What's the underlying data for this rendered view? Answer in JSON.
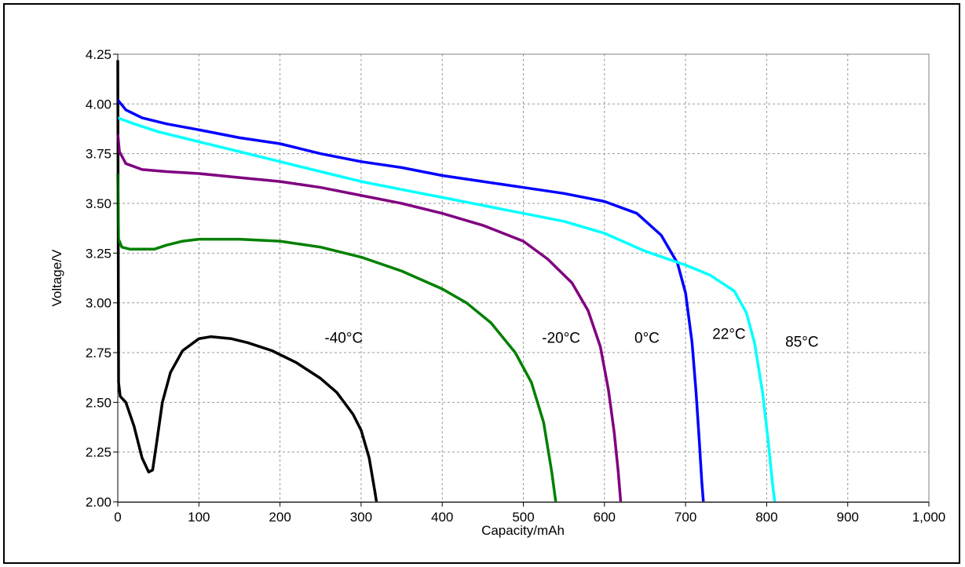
{
  "chart_data": {
    "type": "line",
    "title": "",
    "xlabel": "Capacity/mAh",
    "ylabel": "Voltage/V",
    "xlim": [
      0,
      1000
    ],
    "ylim": [
      2.0,
      4.25
    ],
    "x_ticks": [
      0,
      100,
      200,
      300,
      400,
      500,
      600,
      700,
      800,
      900,
      1000
    ],
    "x_tick_labels": [
      "0",
      "100",
      "200",
      "300",
      "400",
      "500",
      "600",
      "700",
      "800",
      "900",
      "1,000"
    ],
    "y_ticks": [
      2.0,
      2.25,
      2.5,
      2.75,
      3.0,
      3.25,
      3.5,
      3.75,
      4.0,
      4.25
    ],
    "y_tick_labels": [
      "2.00",
      "2.25",
      "2.50",
      "2.75",
      "3.00",
      "3.25",
      "3.50",
      "3.75",
      "4.00",
      "4.25"
    ],
    "grid": true,
    "legend": "none",
    "series": [
      {
        "name": "-40°C",
        "color": "#000000",
        "points": [
          [
            0,
            4.22
          ],
          [
            1,
            2.6
          ],
          [
            3,
            2.53
          ],
          [
            10,
            2.5
          ],
          [
            20,
            2.38
          ],
          [
            30,
            2.22
          ],
          [
            38,
            2.15
          ],
          [
            43,
            2.16
          ],
          [
            48,
            2.3
          ],
          [
            55,
            2.5
          ],
          [
            65,
            2.65
          ],
          [
            80,
            2.76
          ],
          [
            100,
            2.82
          ],
          [
            115,
            2.83
          ],
          [
            140,
            2.82
          ],
          [
            160,
            2.8
          ],
          [
            190,
            2.76
          ],
          [
            220,
            2.7
          ],
          [
            250,
            2.62
          ],
          [
            270,
            2.55
          ],
          [
            290,
            2.44
          ],
          [
            300,
            2.36
          ],
          [
            310,
            2.22
          ],
          [
            317,
            2.05
          ],
          [
            319,
            2.0
          ]
        ]
      },
      {
        "name": "-20°C",
        "color": "#008000",
        "points": [
          [
            0,
            3.65
          ],
          [
            1,
            3.32
          ],
          [
            5,
            3.28
          ],
          [
            15,
            3.27
          ],
          [
            45,
            3.27
          ],
          [
            60,
            3.29
          ],
          [
            80,
            3.31
          ],
          [
            100,
            3.32
          ],
          [
            150,
            3.32
          ],
          [
            200,
            3.31
          ],
          [
            250,
            3.28
          ],
          [
            300,
            3.23
          ],
          [
            350,
            3.16
          ],
          [
            400,
            3.07
          ],
          [
            430,
            3.0
          ],
          [
            460,
            2.9
          ],
          [
            490,
            2.75
          ],
          [
            510,
            2.6
          ],
          [
            525,
            2.4
          ],
          [
            535,
            2.15
          ],
          [
            540,
            2.0
          ]
        ]
      },
      {
        "name": "0°C",
        "color": "#800080",
        "points": [
          [
            0,
            3.85
          ],
          [
            2,
            3.76
          ],
          [
            10,
            3.7
          ],
          [
            30,
            3.67
          ],
          [
            60,
            3.66
          ],
          [
            100,
            3.65
          ],
          [
            150,
            3.63
          ],
          [
            200,
            3.61
          ],
          [
            250,
            3.58
          ],
          [
            300,
            3.54
          ],
          [
            350,
            3.5
          ],
          [
            400,
            3.45
          ],
          [
            450,
            3.39
          ],
          [
            500,
            3.31
          ],
          [
            530,
            3.22
          ],
          [
            560,
            3.1
          ],
          [
            580,
            2.96
          ],
          [
            595,
            2.78
          ],
          [
            605,
            2.56
          ],
          [
            612,
            2.35
          ],
          [
            617,
            2.15
          ],
          [
            620,
            2.0
          ]
        ]
      },
      {
        "name": "22°C",
        "color": "#0000ff",
        "points": [
          [
            0,
            4.02
          ],
          [
            10,
            3.97
          ],
          [
            30,
            3.93
          ],
          [
            60,
            3.9
          ],
          [
            100,
            3.87
          ],
          [
            150,
            3.83
          ],
          [
            200,
            3.8
          ],
          [
            250,
            3.75
          ],
          [
            300,
            3.71
          ],
          [
            350,
            3.68
          ],
          [
            400,
            3.64
          ],
          [
            450,
            3.61
          ],
          [
            500,
            3.58
          ],
          [
            550,
            3.55
          ],
          [
            600,
            3.51
          ],
          [
            640,
            3.45
          ],
          [
            670,
            3.34
          ],
          [
            690,
            3.2
          ],
          [
            700,
            3.05
          ],
          [
            708,
            2.8
          ],
          [
            713,
            2.55
          ],
          [
            717,
            2.3
          ],
          [
            720,
            2.1
          ],
          [
            722,
            2.0
          ]
        ]
      },
      {
        "name": "85°C",
        "color": "#00ffff",
        "points": [
          [
            0,
            3.93
          ],
          [
            20,
            3.9
          ],
          [
            50,
            3.86
          ],
          [
            100,
            3.81
          ],
          [
            150,
            3.76
          ],
          [
            200,
            3.71
          ],
          [
            250,
            3.66
          ],
          [
            300,
            3.61
          ],
          [
            350,
            3.57
          ],
          [
            400,
            3.53
          ],
          [
            450,
            3.49
          ],
          [
            500,
            3.45
          ],
          [
            550,
            3.41
          ],
          [
            600,
            3.35
          ],
          [
            650,
            3.26
          ],
          [
            700,
            3.19
          ],
          [
            730,
            3.14
          ],
          [
            760,
            3.06
          ],
          [
            775,
            2.95
          ],
          [
            785,
            2.8
          ],
          [
            795,
            2.55
          ],
          [
            802,
            2.3
          ],
          [
            807,
            2.1
          ],
          [
            810,
            2.0
          ]
        ]
      }
    ],
    "annotations": [
      {
        "text": "-40°C",
        "x": 255,
        "y": 2.8
      },
      {
        "text": "-20°C",
        "x": 523,
        "y": 2.8
      },
      {
        "text": "0°C",
        "x": 637,
        "y": 2.8
      },
      {
        "text": "22°C",
        "x": 733,
        "y": 2.82
      },
      {
        "text": "85°C",
        "x": 823,
        "y": 2.78
      }
    ]
  }
}
